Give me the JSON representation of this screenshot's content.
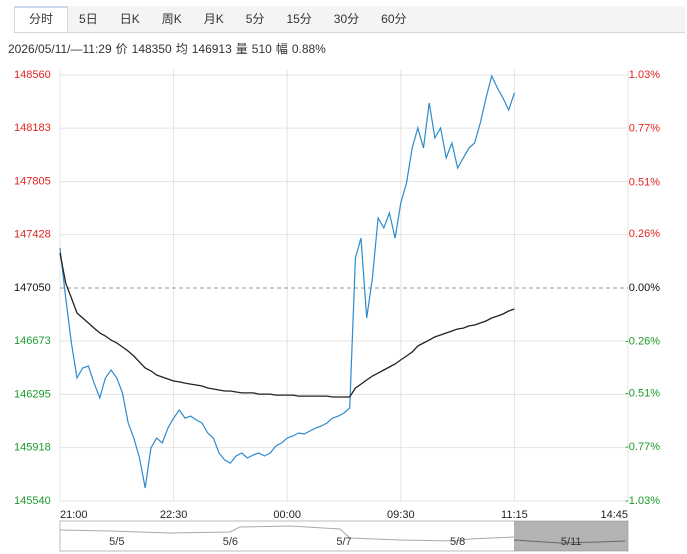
{
  "tabs": [
    "分时",
    "5日",
    "日K",
    "周K",
    "月K",
    "5分",
    "15分",
    "30分",
    "60分"
  ],
  "info": {
    "time": "2026/05/11/—11:29",
    "fields": [
      {
        "label": "价",
        "value": "148350"
      },
      {
        "label": "均",
        "value": "146913"
      },
      {
        "label": "量",
        "value": "510"
      },
      {
        "label": "幅",
        "value": "0.88%"
      }
    ]
  },
  "chart_data": {
    "type": "line",
    "xlim": [
      0,
      100
    ],
    "xticks": [
      {
        "value": 0,
        "label": "21:00"
      },
      {
        "value": 20,
        "label": "22:30"
      },
      {
        "value": 40,
        "label": "00:00"
      },
      {
        "value": 60,
        "label": "09:30"
      },
      {
        "value": 80,
        "label": "11:15"
      },
      {
        "value": 100,
        "label": "14:45"
      }
    ],
    "ylim": [
      145540,
      148560
    ],
    "yticks": [
      145540,
      145918,
      146295,
      146673,
      147050,
      147428,
      147805,
      148183,
      148560
    ],
    "y2lim": [
      -1.03,
      1.03
    ],
    "y2ticks": [
      {
        "value": -1.03,
        "label": "-1.03%"
      },
      {
        "value": -0.77,
        "label": "-0.77%"
      },
      {
        "value": -0.51,
        "label": "-0.51%"
      },
      {
        "value": -0.26,
        "label": "-0.26%"
      },
      {
        "value": 0,
        "label": "0.00%"
      },
      {
        "value": 0.26,
        "label": "0.26%"
      },
      {
        "value": 0.51,
        "label": "0.51%"
      },
      {
        "value": 0.77,
        "label": "0.77%"
      },
      {
        "value": 1.03,
        "label": "1.03%"
      }
    ],
    "grid": true,
    "up_color": "#e0251f",
    "down_color": "#1a9b2a",
    "series": [
      {
        "name": "价",
        "color": "#2e8bcc",
        "values": [
          147334,
          146979,
          146660,
          146412,
          146483,
          146497,
          146376,
          146270,
          146412,
          146469,
          146412,
          146305,
          146093,
          145986,
          145845,
          145632,
          145916,
          145986,
          145951,
          146057,
          146128,
          146185,
          146128,
          146142,
          146114,
          146093,
          146022,
          145986,
          145880,
          145831,
          145809,
          145859,
          145880,
          145845,
          145866,
          145880,
          145859,
          145880,
          145930,
          145951,
          145986,
          146001,
          146022,
          146015,
          146036,
          146057,
          146072,
          146093,
          146128,
          146142,
          146164,
          146199,
          147263,
          147404,
          146837,
          147121,
          147546,
          147475,
          147582,
          147404,
          147653,
          147794,
          148043,
          148184,
          148043,
          148362,
          148114,
          148184,
          147972,
          148078,
          147901,
          147972,
          148043,
          148078,
          148220,
          148397,
          148553,
          148468,
          148397,
          148312,
          148433
        ]
      },
      {
        "name": "均",
        "color": "#222222",
        "values": [
          147298,
          147085,
          146979,
          146873,
          146837,
          146802,
          146766,
          146731,
          146710,
          146681,
          146660,
          146632,
          146603,
          146568,
          146525,
          146483,
          146462,
          146433,
          146419,
          146405,
          146391,
          146384,
          146376,
          146369,
          146362,
          146355,
          146341,
          146334,
          146327,
          146320,
          146320,
          146313,
          146306,
          146306,
          146306,
          146298,
          146298,
          146298,
          146291,
          146291,
          146291,
          146291,
          146284,
          146284,
          146284,
          146284,
          146284,
          146284,
          146277,
          146277,
          146277,
          146277,
          146341,
          146369,
          146398,
          146426,
          146447,
          146469,
          146490,
          146511,
          146540,
          146568,
          146596,
          146639,
          146660,
          146681,
          146703,
          146717,
          146731,
          146745,
          146759,
          146766,
          146781,
          146788,
          146802,
          146816,
          146837,
          146851,
          146866,
          146887,
          146901
        ]
      }
    ]
  },
  "navigator": [
    "5/5",
    "5/6",
    "5/7",
    "5/8",
    "5/11"
  ]
}
